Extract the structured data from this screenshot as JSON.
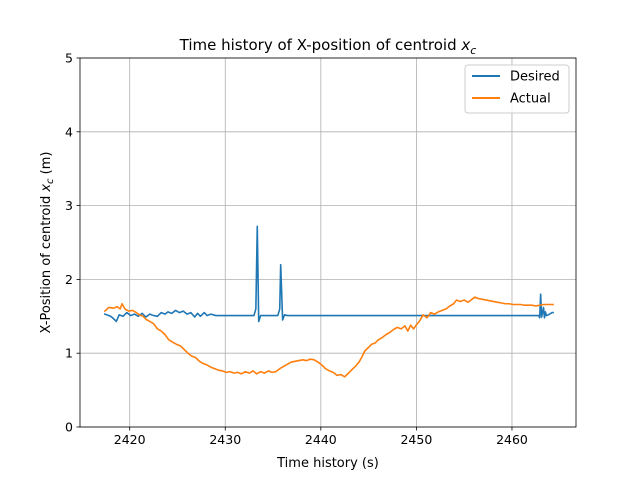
{
  "chart_data": {
    "type": "line",
    "title_prefix": "Time history of X-position of centroid ",
    "title_math": "x",
    "title_math_sub": "c",
    "xlabel": "Time history (s)",
    "ylabel_prefix": "X-Position of centroid ",
    "ylabel_math": "x",
    "ylabel_math_sub": "c",
    "ylabel_suffix": " (m)",
    "xlim": [
      2414.8,
      2466.7
    ],
    "ylim": [
      0,
      5
    ],
    "xticks": [
      2420,
      2430,
      2440,
      2450,
      2460
    ],
    "yticks": [
      0,
      1,
      2,
      3,
      4,
      5
    ],
    "grid": true,
    "legend_position": "top-right",
    "series": [
      {
        "name": "Desired",
        "color": "#1f77b4",
        "points": [
          [
            2417.4,
            1.53
          ],
          [
            2418.0,
            1.5
          ],
          [
            2418.3,
            1.47
          ],
          [
            2418.6,
            1.43
          ],
          [
            2418.9,
            1.52
          ],
          [
            2419.3,
            1.5
          ],
          [
            2419.7,
            1.55
          ],
          [
            2420.1,
            1.51
          ],
          [
            2420.5,
            1.53
          ],
          [
            2420.9,
            1.5
          ],
          [
            2421.3,
            1.54
          ],
          [
            2421.7,
            1.49
          ],
          [
            2422.1,
            1.53
          ],
          [
            2422.5,
            1.51
          ],
          [
            2422.9,
            1.5
          ],
          [
            2423.3,
            1.55
          ],
          [
            2423.7,
            1.53
          ],
          [
            2424.0,
            1.56
          ],
          [
            2424.4,
            1.54
          ],
          [
            2424.8,
            1.58
          ],
          [
            2425.2,
            1.55
          ],
          [
            2425.6,
            1.57
          ],
          [
            2426.0,
            1.53
          ],
          [
            2426.4,
            1.55
          ],
          [
            2426.8,
            1.49
          ],
          [
            2427.1,
            1.54
          ],
          [
            2427.4,
            1.5
          ],
          [
            2427.8,
            1.55
          ],
          [
            2428.1,
            1.51
          ],
          [
            2428.5,
            1.53
          ],
          [
            2429.0,
            1.51
          ],
          [
            2433.0,
            1.51
          ],
          [
            2433.2,
            1.6
          ],
          [
            2433.35,
            2.72
          ],
          [
            2433.5,
            1.43
          ],
          [
            2433.7,
            1.51
          ],
          [
            2435.5,
            1.51
          ],
          [
            2435.7,
            1.6
          ],
          [
            2435.8,
            2.2
          ],
          [
            2436.0,
            1.45
          ],
          [
            2436.2,
            1.52
          ],
          [
            2436.5,
            1.51
          ],
          [
            2462.8,
            1.51
          ],
          [
            2462.9,
            1.48
          ],
          [
            2463.0,
            1.8
          ],
          [
            2463.1,
            1.49
          ],
          [
            2463.2,
            1.55
          ],
          [
            2463.3,
            1.62
          ],
          [
            2463.4,
            1.48
          ],
          [
            2463.5,
            1.56
          ],
          [
            2463.6,
            1.51
          ],
          [
            2463.8,
            1.52
          ],
          [
            2464.2,
            1.55
          ],
          [
            2464.3,
            1.55
          ]
        ]
      },
      {
        "name": "Actual",
        "color": "#ff7f0e",
        "points": [
          [
            2417.4,
            1.57
          ],
          [
            2417.8,
            1.62
          ],
          [
            2418.3,
            1.61
          ],
          [
            2418.7,
            1.63
          ],
          [
            2419.0,
            1.6
          ],
          [
            2419.2,
            1.67
          ],
          [
            2419.5,
            1.6
          ],
          [
            2419.9,
            1.57
          ],
          [
            2420.3,
            1.58
          ],
          [
            2420.7,
            1.55
          ],
          [
            2421.0,
            1.52
          ],
          [
            2421.4,
            1.5
          ],
          [
            2421.7,
            1.46
          ],
          [
            2422.1,
            1.43
          ],
          [
            2422.5,
            1.4
          ],
          [
            2422.9,
            1.33
          ],
          [
            2423.3,
            1.3
          ],
          [
            2423.7,
            1.25
          ],
          [
            2424.1,
            1.18
          ],
          [
            2424.5,
            1.15
          ],
          [
            2424.9,
            1.12
          ],
          [
            2425.3,
            1.1
          ],
          [
            2425.7,
            1.05
          ],
          [
            2426.1,
            1.0
          ],
          [
            2426.5,
            0.96
          ],
          [
            2426.9,
            0.94
          ],
          [
            2427.3,
            0.89
          ],
          [
            2427.7,
            0.86
          ],
          [
            2428.1,
            0.84
          ],
          [
            2428.5,
            0.81
          ],
          [
            2428.9,
            0.79
          ],
          [
            2429.3,
            0.77
          ],
          [
            2429.7,
            0.76
          ],
          [
            2430.1,
            0.74
          ],
          [
            2430.5,
            0.75
          ],
          [
            2430.9,
            0.73
          ],
          [
            2431.3,
            0.74
          ],
          [
            2431.7,
            0.72
          ],
          [
            2432.1,
            0.75
          ],
          [
            2432.5,
            0.73
          ],
          [
            2432.9,
            0.76
          ],
          [
            2433.3,
            0.72
          ],
          [
            2433.7,
            0.75
          ],
          [
            2434.1,
            0.73
          ],
          [
            2434.5,
            0.76
          ],
          [
            2434.9,
            0.74
          ],
          [
            2435.3,
            0.75
          ],
          [
            2435.7,
            0.79
          ],
          [
            2436.1,
            0.82
          ],
          [
            2436.5,
            0.85
          ],
          [
            2436.9,
            0.88
          ],
          [
            2437.3,
            0.89
          ],
          [
            2437.7,
            0.9
          ],
          [
            2438.1,
            0.91
          ],
          [
            2438.5,
            0.9
          ],
          [
            2438.9,
            0.92
          ],
          [
            2439.3,
            0.91
          ],
          [
            2439.7,
            0.88
          ],
          [
            2440.1,
            0.84
          ],
          [
            2440.5,
            0.79
          ],
          [
            2440.9,
            0.76
          ],
          [
            2441.3,
            0.74
          ],
          [
            2441.7,
            0.7
          ],
          [
            2442.1,
            0.71
          ],
          [
            2442.5,
            0.68
          ],
          [
            2442.9,
            0.73
          ],
          [
            2443.2,
            0.77
          ],
          [
            2443.6,
            0.82
          ],
          [
            2444.0,
            0.88
          ],
          [
            2444.3,
            0.95
          ],
          [
            2444.6,
            1.03
          ],
          [
            2445.0,
            1.08
          ],
          [
            2445.3,
            1.12
          ],
          [
            2445.7,
            1.14
          ],
          [
            2446.0,
            1.18
          ],
          [
            2446.4,
            1.21
          ],
          [
            2446.8,
            1.25
          ],
          [
            2447.2,
            1.28
          ],
          [
            2447.6,
            1.32
          ],
          [
            2448.0,
            1.35
          ],
          [
            2448.4,
            1.33
          ],
          [
            2448.8,
            1.37
          ],
          [
            2449.1,
            1.3
          ],
          [
            2449.4,
            1.38
          ],
          [
            2449.7,
            1.33
          ],
          [
            2450.1,
            1.4
          ],
          [
            2450.4,
            1.45
          ],
          [
            2450.7,
            1.52
          ],
          [
            2451.1,
            1.48
          ],
          [
            2451.5,
            1.55
          ],
          [
            2451.9,
            1.53
          ],
          [
            2452.3,
            1.56
          ],
          [
            2452.7,
            1.58
          ],
          [
            2453.1,
            1.6
          ],
          [
            2453.5,
            1.64
          ],
          [
            2453.9,
            1.67
          ],
          [
            2454.2,
            1.72
          ],
          [
            2454.6,
            1.7
          ],
          [
            2455.0,
            1.72
          ],
          [
            2455.4,
            1.69
          ],
          [
            2455.8,
            1.73
          ],
          [
            2456.1,
            1.76
          ],
          [
            2456.5,
            1.74
          ],
          [
            2456.9,
            1.73
          ],
          [
            2457.3,
            1.72
          ],
          [
            2457.7,
            1.71
          ],
          [
            2458.1,
            1.7
          ],
          [
            2458.5,
            1.69
          ],
          [
            2458.9,
            1.68
          ],
          [
            2459.3,
            1.67
          ],
          [
            2459.7,
            1.67
          ],
          [
            2460.1,
            1.66
          ],
          [
            2460.5,
            1.66
          ],
          [
            2460.9,
            1.66
          ],
          [
            2461.3,
            1.65
          ],
          [
            2461.7,
            1.65
          ],
          [
            2462.1,
            1.65
          ],
          [
            2462.5,
            1.64
          ],
          [
            2462.9,
            1.65
          ],
          [
            2463.3,
            1.66
          ],
          [
            2463.7,
            1.66
          ],
          [
            2464.1,
            1.66
          ],
          [
            2464.3,
            1.66
          ]
        ]
      }
    ]
  }
}
